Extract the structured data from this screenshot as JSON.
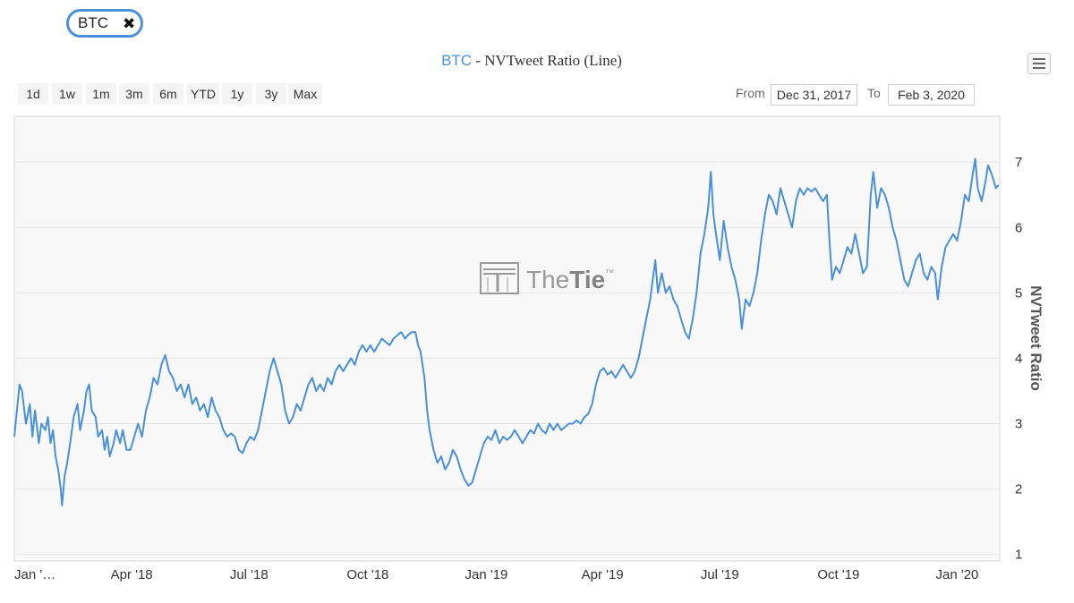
{
  "tag": {
    "label": "BTC",
    "close_icon": "✖"
  },
  "title": {
    "asset": "BTC",
    "rest": " - NVTweet Ratio (Line)"
  },
  "range_buttons": [
    "1d",
    "1w",
    "1m",
    "3m",
    "6m",
    "YTD",
    "1y",
    "3y",
    "Max"
  ],
  "date_range": {
    "from_label": "From",
    "from_value": "Dec 31, 2017",
    "to_label": "To",
    "to_value": "Feb 3, 2020"
  },
  "watermark": {
    "brand_thin": "The",
    "brand_bold": "Tie",
    "tm": "™"
  },
  "colors": {
    "line": "#4a90d9",
    "accent": "#4a90d9"
  },
  "chart_data": {
    "type": "line",
    "title": "BTC - NVTweet Ratio (Line)",
    "ylabel": "NVTweet Ratio",
    "xlabel": "",
    "ylim": [
      0.9,
      7.7
    ],
    "yticks": [
      1,
      2,
      3,
      4,
      5,
      6,
      7
    ],
    "xlim": [
      "2017-12-31",
      "2020-02-03"
    ],
    "xticks": [
      {
        "date": "2018-01-01",
        "label": "Jan '…"
      },
      {
        "date": "2018-04-01",
        "label": "Apr '18"
      },
      {
        "date": "2018-07-01",
        "label": "Jul '18"
      },
      {
        "date": "2018-10-01",
        "label": "Oct '18"
      },
      {
        "date": "2019-01-01",
        "label": "Jan '19"
      },
      {
        "date": "2019-04-01",
        "label": "Apr '19"
      },
      {
        "date": "2019-07-01",
        "label": "Jul '19"
      },
      {
        "date": "2019-10-01",
        "label": "Oct '19"
      },
      {
        "date": "2020-01-01",
        "label": "Jan '20"
      }
    ],
    "grid": true,
    "legend": "none",
    "y_axis_side": "right",
    "series": [
      {
        "points": [
          [
            "2017-12-31",
            2.8
          ],
          [
            "2018-01-02",
            3.2
          ],
          [
            "2018-01-04",
            3.6
          ],
          [
            "2018-01-06",
            3.5
          ],
          [
            "2018-01-09",
            3.0
          ],
          [
            "2018-01-12",
            3.3
          ],
          [
            "2018-01-14",
            2.8
          ],
          [
            "2018-01-16",
            3.2
          ],
          [
            "2018-01-19",
            2.7
          ],
          [
            "2018-01-21",
            3.0
          ],
          [
            "2018-01-24",
            2.9
          ],
          [
            "2018-01-26",
            3.1
          ],
          [
            "2018-01-28",
            2.7
          ],
          [
            "2018-01-30",
            2.9
          ],
          [
            "2018-02-01",
            2.5
          ],
          [
            "2018-02-03",
            2.3
          ],
          [
            "2018-02-05",
            2.0
          ],
          [
            "2018-02-06",
            1.75
          ],
          [
            "2018-02-08",
            2.2
          ],
          [
            "2018-02-10",
            2.4
          ],
          [
            "2018-02-13",
            2.8
          ],
          [
            "2018-02-15",
            3.1
          ],
          [
            "2018-02-18",
            3.3
          ],
          [
            "2018-02-20",
            2.9
          ],
          [
            "2018-02-23",
            3.2
          ],
          [
            "2018-02-25",
            3.5
          ],
          [
            "2018-02-27",
            3.6
          ],
          [
            "2018-03-01",
            3.2
          ],
          [
            "2018-03-04",
            3.1
          ],
          [
            "2018-03-06",
            2.8
          ],
          [
            "2018-03-09",
            2.9
          ],
          [
            "2018-03-11",
            2.6
          ],
          [
            "2018-03-13",
            2.8
          ],
          [
            "2018-03-15",
            2.5
          ],
          [
            "2018-03-18",
            2.7
          ],
          [
            "2018-03-20",
            2.9
          ],
          [
            "2018-03-23",
            2.7
          ],
          [
            "2018-03-25",
            2.9
          ],
          [
            "2018-03-28",
            2.6
          ],
          [
            "2018-03-31",
            2.6
          ],
          [
            "2018-04-03",
            2.8
          ],
          [
            "2018-04-06",
            3.0
          ],
          [
            "2018-04-09",
            2.8
          ],
          [
            "2018-04-12",
            3.2
          ],
          [
            "2018-04-15",
            3.4
          ],
          [
            "2018-04-18",
            3.7
          ],
          [
            "2018-04-21",
            3.6
          ],
          [
            "2018-04-24",
            3.9
          ],
          [
            "2018-04-27",
            4.05
          ],
          [
            "2018-04-30",
            3.8
          ],
          [
            "2018-05-03",
            3.7
          ],
          [
            "2018-05-06",
            3.5
          ],
          [
            "2018-05-09",
            3.6
          ],
          [
            "2018-05-12",
            3.4
          ],
          [
            "2018-05-15",
            3.6
          ],
          [
            "2018-05-18",
            3.3
          ],
          [
            "2018-05-21",
            3.4
          ],
          [
            "2018-05-24",
            3.2
          ],
          [
            "2018-05-27",
            3.3
          ],
          [
            "2018-05-30",
            3.1
          ],
          [
            "2018-06-02",
            3.4
          ],
          [
            "2018-06-05",
            3.2
          ],
          [
            "2018-06-08",
            3.1
          ],
          [
            "2018-06-11",
            2.9
          ],
          [
            "2018-06-14",
            2.8
          ],
          [
            "2018-06-17",
            2.85
          ],
          [
            "2018-06-20",
            2.8
          ],
          [
            "2018-06-23",
            2.6
          ],
          [
            "2018-06-26",
            2.55
          ],
          [
            "2018-06-29",
            2.7
          ],
          [
            "2018-07-02",
            2.8
          ],
          [
            "2018-07-05",
            2.75
          ],
          [
            "2018-07-08",
            2.9
          ],
          [
            "2018-07-11",
            3.2
          ],
          [
            "2018-07-14",
            3.5
          ],
          [
            "2018-07-17",
            3.8
          ],
          [
            "2018-07-20",
            4.0
          ],
          [
            "2018-07-23",
            3.8
          ],
          [
            "2018-07-26",
            3.6
          ],
          [
            "2018-07-29",
            3.2
          ],
          [
            "2018-08-01",
            3.0
          ],
          [
            "2018-08-04",
            3.1
          ],
          [
            "2018-08-07",
            3.3
          ],
          [
            "2018-08-10",
            3.2
          ],
          [
            "2018-08-13",
            3.4
          ],
          [
            "2018-08-16",
            3.6
          ],
          [
            "2018-08-19",
            3.7
          ],
          [
            "2018-08-22",
            3.5
          ],
          [
            "2018-08-25",
            3.6
          ],
          [
            "2018-08-28",
            3.5
          ],
          [
            "2018-08-31",
            3.7
          ],
          [
            "2018-09-03",
            3.6
          ],
          [
            "2018-09-06",
            3.8
          ],
          [
            "2018-09-09",
            3.9
          ],
          [
            "2018-09-12",
            3.8
          ],
          [
            "2018-09-15",
            3.9
          ],
          [
            "2018-09-18",
            4.0
          ],
          [
            "2018-09-21",
            3.9
          ],
          [
            "2018-09-24",
            4.1
          ],
          [
            "2018-09-27",
            4.2
          ],
          [
            "2018-09-30",
            4.1
          ],
          [
            "2018-10-03",
            4.2
          ],
          [
            "2018-10-06",
            4.1
          ],
          [
            "2018-10-09",
            4.2
          ],
          [
            "2018-10-12",
            4.3
          ],
          [
            "2018-10-15",
            4.25
          ],
          [
            "2018-10-18",
            4.2
          ],
          [
            "2018-10-21",
            4.3
          ],
          [
            "2018-10-24",
            4.35
          ],
          [
            "2018-10-27",
            4.4
          ],
          [
            "2018-10-30",
            4.3
          ],
          [
            "2018-11-01",
            4.35
          ],
          [
            "2018-11-04",
            4.4
          ],
          [
            "2018-11-07",
            4.4
          ],
          [
            "2018-11-09",
            4.2
          ],
          [
            "2018-11-11",
            4.1
          ],
          [
            "2018-11-14",
            3.7
          ],
          [
            "2018-11-16",
            3.2
          ],
          [
            "2018-11-18",
            2.9
          ],
          [
            "2018-11-21",
            2.6
          ],
          [
            "2018-11-24",
            2.4
          ],
          [
            "2018-11-27",
            2.5
          ],
          [
            "2018-11-30",
            2.3
          ],
          [
            "2018-12-03",
            2.4
          ],
          [
            "2018-12-06",
            2.6
          ],
          [
            "2018-12-09",
            2.5
          ],
          [
            "2018-12-12",
            2.3
          ],
          [
            "2018-12-15",
            2.15
          ],
          [
            "2018-12-18",
            2.05
          ],
          [
            "2018-12-21",
            2.1
          ],
          [
            "2018-12-24",
            2.3
          ],
          [
            "2018-12-27",
            2.5
          ],
          [
            "2018-12-30",
            2.7
          ],
          [
            "2019-01-02",
            2.8
          ],
          [
            "2019-01-05",
            2.75
          ],
          [
            "2019-01-08",
            2.9
          ],
          [
            "2019-01-11",
            2.7
          ],
          [
            "2019-01-14",
            2.8
          ],
          [
            "2019-01-17",
            2.75
          ],
          [
            "2019-01-20",
            2.8
          ],
          [
            "2019-01-23",
            2.9
          ],
          [
            "2019-01-26",
            2.8
          ],
          [
            "2019-01-29",
            2.7
          ],
          [
            "2019-02-01",
            2.8
          ],
          [
            "2019-02-04",
            2.9
          ],
          [
            "2019-02-07",
            2.85
          ],
          [
            "2019-02-10",
            3.0
          ],
          [
            "2019-02-13",
            2.9
          ],
          [
            "2019-02-16",
            2.85
          ],
          [
            "2019-02-19",
            3.0
          ],
          [
            "2019-02-22",
            2.9
          ],
          [
            "2019-02-25",
            3.0
          ],
          [
            "2019-02-28",
            2.9
          ],
          [
            "2019-03-03",
            2.95
          ],
          [
            "2019-03-06",
            3.0
          ],
          [
            "2019-03-09",
            3.0
          ],
          [
            "2019-03-12",
            3.05
          ],
          [
            "2019-03-15",
            3.0
          ],
          [
            "2019-03-18",
            3.1
          ],
          [
            "2019-03-21",
            3.15
          ],
          [
            "2019-03-24",
            3.3
          ],
          [
            "2019-03-27",
            3.6
          ],
          [
            "2019-03-30",
            3.8
          ],
          [
            "2019-04-02",
            3.85
          ],
          [
            "2019-04-05",
            3.75
          ],
          [
            "2019-04-08",
            3.8
          ],
          [
            "2019-04-11",
            3.7
          ],
          [
            "2019-04-14",
            3.8
          ],
          [
            "2019-04-17",
            3.9
          ],
          [
            "2019-04-20",
            3.8
          ],
          [
            "2019-04-23",
            3.7
          ],
          [
            "2019-04-26",
            3.8
          ],
          [
            "2019-04-29",
            4.0
          ],
          [
            "2019-05-02",
            4.3
          ],
          [
            "2019-05-05",
            4.6
          ],
          [
            "2019-05-08",
            4.9
          ],
          [
            "2019-05-10",
            5.2
          ],
          [
            "2019-05-12",
            5.5
          ],
          [
            "2019-05-14",
            5.0
          ],
          [
            "2019-05-17",
            5.3
          ],
          [
            "2019-05-20",
            5.0
          ],
          [
            "2019-05-23",
            5.1
          ],
          [
            "2019-05-26",
            4.9
          ],
          [
            "2019-05-29",
            4.8
          ],
          [
            "2019-06-01",
            4.6
          ],
          [
            "2019-06-04",
            4.4
          ],
          [
            "2019-06-07",
            4.3
          ],
          [
            "2019-06-10",
            4.6
          ],
          [
            "2019-06-13",
            5.0
          ],
          [
            "2019-06-16",
            5.6
          ],
          [
            "2019-06-19",
            5.9
          ],
          [
            "2019-06-22",
            6.3
          ],
          [
            "2019-06-24",
            6.85
          ],
          [
            "2019-06-26",
            6.2
          ],
          [
            "2019-06-28",
            5.9
          ],
          [
            "2019-07-01",
            5.5
          ],
          [
            "2019-07-04",
            6.1
          ],
          [
            "2019-07-07",
            5.7
          ],
          [
            "2019-07-10",
            5.4
          ],
          [
            "2019-07-13",
            5.2
          ],
          [
            "2019-07-16",
            4.9
          ],
          [
            "2019-07-18",
            4.45
          ],
          [
            "2019-07-21",
            4.9
          ],
          [
            "2019-07-24",
            4.8
          ],
          [
            "2019-07-27",
            5.0
          ],
          [
            "2019-07-30",
            5.3
          ],
          [
            "2019-08-02",
            5.8
          ],
          [
            "2019-08-05",
            6.2
          ],
          [
            "2019-08-08",
            6.5
          ],
          [
            "2019-08-11",
            6.4
          ],
          [
            "2019-08-14",
            6.2
          ],
          [
            "2019-08-17",
            6.6
          ],
          [
            "2019-08-20",
            6.4
          ],
          [
            "2019-08-23",
            6.2
          ],
          [
            "2019-08-26",
            6.0
          ],
          [
            "2019-08-29",
            6.4
          ],
          [
            "2019-09-01",
            6.6
          ],
          [
            "2019-09-04",
            6.5
          ],
          [
            "2019-09-07",
            6.6
          ],
          [
            "2019-09-10",
            6.55
          ],
          [
            "2019-09-13",
            6.6
          ],
          [
            "2019-09-16",
            6.5
          ],
          [
            "2019-09-19",
            6.4
          ],
          [
            "2019-09-22",
            6.5
          ],
          [
            "2019-09-24",
            5.8
          ],
          [
            "2019-09-26",
            5.2
          ],
          [
            "2019-09-29",
            5.4
          ],
          [
            "2019-10-02",
            5.3
          ],
          [
            "2019-10-05",
            5.5
          ],
          [
            "2019-10-08",
            5.7
          ],
          [
            "2019-10-11",
            5.6
          ],
          [
            "2019-10-14",
            5.9
          ],
          [
            "2019-10-17",
            5.6
          ],
          [
            "2019-10-20",
            5.3
          ],
          [
            "2019-10-23",
            5.4
          ],
          [
            "2019-10-26",
            6.5
          ],
          [
            "2019-10-28",
            6.85
          ],
          [
            "2019-10-31",
            6.3
          ],
          [
            "2019-11-03",
            6.6
          ],
          [
            "2019-11-06",
            6.5
          ],
          [
            "2019-11-09",
            6.3
          ],
          [
            "2019-11-12",
            6.0
          ],
          [
            "2019-11-15",
            5.8
          ],
          [
            "2019-11-18",
            5.5
          ],
          [
            "2019-11-21",
            5.2
          ],
          [
            "2019-11-24",
            5.1
          ],
          [
            "2019-11-27",
            5.3
          ],
          [
            "2019-11-30",
            5.5
          ],
          [
            "2019-12-03",
            5.6
          ],
          [
            "2019-12-06",
            5.3
          ],
          [
            "2019-12-09",
            5.2
          ],
          [
            "2019-12-12",
            5.4
          ],
          [
            "2019-12-15",
            5.3
          ],
          [
            "2019-12-17",
            4.9
          ],
          [
            "2019-12-20",
            5.4
          ],
          [
            "2019-12-23",
            5.7
          ],
          [
            "2019-12-26",
            5.8
          ],
          [
            "2019-12-29",
            5.9
          ],
          [
            "2020-01-01",
            5.8
          ],
          [
            "2020-01-04",
            6.1
          ],
          [
            "2020-01-07",
            6.5
          ],
          [
            "2020-01-10",
            6.4
          ],
          [
            "2020-01-13",
            6.8
          ],
          [
            "2020-01-15",
            7.05
          ],
          [
            "2020-01-17",
            6.6
          ],
          [
            "2020-01-20",
            6.4
          ],
          [
            "2020-01-23",
            6.7
          ],
          [
            "2020-01-25",
            6.95
          ],
          [
            "2020-01-28",
            6.8
          ],
          [
            "2020-01-31",
            6.6
          ],
          [
            "2020-02-02",
            6.65
          ]
        ]
      }
    ]
  }
}
